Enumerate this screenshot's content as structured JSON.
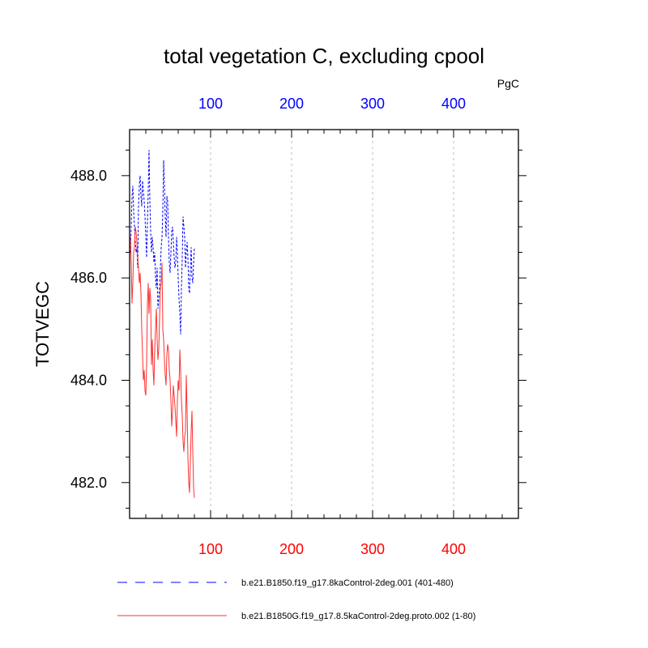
{
  "chart_data": {
    "type": "line",
    "title": "total vegetation C, excluding cpool",
    "units": "PgC",
    "ylabel": "TOTVEGC",
    "ylim": [
      481.3,
      488.9
    ],
    "yticks": [
      482.0,
      484.0,
      486.0,
      488.0
    ],
    "ytick_labels": [
      "482.0",
      "484.0",
      "486.0",
      "488.0"
    ],
    "xlim": [
      0,
      480
    ],
    "xticks": [
      100,
      200,
      300,
      400
    ],
    "xtick_labels_bottom": [
      "100",
      "200",
      "300",
      "400"
    ],
    "xtick_labels_top": [
      "100",
      "200",
      "300",
      "400"
    ],
    "grid": "vertical dashed at major x ticks",
    "legend_position": "bottom",
    "colors": {
      "top_axis": "#0000ff",
      "bottom_axis": "#ff0000",
      "series_blue": "#0000ff",
      "series_red": "#ff3030"
    },
    "series": [
      {
        "name": "b.e21.B1850.f19_g17.8kaControl-2deg.001 (401-480)",
        "color": "#0000ff",
        "style": "dashed",
        "x": [
          1,
          2,
          3,
          4,
          5,
          6,
          7,
          8,
          9,
          10,
          11,
          12,
          13,
          14,
          15,
          16,
          17,
          18,
          19,
          20,
          21,
          22,
          23,
          24,
          25,
          26,
          27,
          28,
          29,
          30,
          31,
          32,
          33,
          34,
          35,
          36,
          37,
          38,
          39,
          40,
          41,
          42,
          43,
          44,
          45,
          46,
          47,
          48,
          49,
          50,
          51,
          52,
          53,
          54,
          55,
          56,
          57,
          58,
          59,
          60,
          61,
          62,
          63,
          64,
          65,
          66,
          67,
          68,
          69,
          70,
          71,
          72,
          73,
          74,
          75,
          76,
          77,
          78,
          79,
          80
        ],
        "values": [
          486.5,
          487.0,
          487.6,
          487.8,
          487.3,
          487.0,
          486.7,
          486.5,
          486.6,
          486.2,
          487.4,
          487.8,
          488.0,
          487.6,
          487.4,
          487.9,
          487.7,
          487.5,
          487.2,
          486.8,
          486.4,
          487.1,
          487.7,
          488.5,
          487.5,
          486.9,
          486.5,
          486.8,
          486.6,
          486.3,
          486.5,
          486.0,
          485.8,
          486.2,
          485.4,
          485.6,
          485.8,
          486.2,
          486.6,
          486.8,
          487.3,
          488.3,
          487.8,
          487.2,
          486.8,
          487.6,
          487.5,
          486.8,
          486.3,
          486.1,
          486.5,
          486.9,
          487.0,
          486.7,
          486.4,
          486.2,
          486.3,
          486.8,
          486.5,
          486.0,
          485.6,
          485.3,
          484.9,
          485.8,
          486.4,
          487.2,
          487.0,
          486.8,
          486.2,
          486.5,
          486.7,
          486.4,
          485.8,
          485.7,
          486.2,
          486.6,
          486.0,
          485.9,
          486.3,
          486.6
        ]
      },
      {
        "name": "b.e21.B1850G.f19_g17.8.5kaControl-2deg.proto.002 (1-80)",
        "color": "#ff3030",
        "style": "solid",
        "x": [
          1,
          2,
          3,
          4,
          5,
          6,
          7,
          8,
          9,
          10,
          11,
          12,
          13,
          14,
          15,
          16,
          17,
          18,
          19,
          20,
          21,
          22,
          23,
          24,
          25,
          26,
          27,
          28,
          29,
          30,
          31,
          32,
          33,
          34,
          35,
          36,
          37,
          38,
          39,
          40,
          41,
          42,
          43,
          44,
          45,
          46,
          47,
          48,
          49,
          50,
          51,
          52,
          53,
          54,
          55,
          56,
          57,
          58,
          59,
          60,
          61,
          62,
          63,
          64,
          65,
          66,
          67,
          68,
          69,
          70,
          71,
          72,
          73,
          74,
          75,
          76,
          77,
          78,
          79,
          80
        ],
        "values": [
          486.8,
          486.3,
          485.5,
          485.9,
          486.5,
          486.6,
          487.0,
          486.9,
          486.7,
          486.4,
          486.2,
          485.9,
          486.1,
          485.7,
          485.0,
          484.5,
          484.0,
          484.2,
          483.8,
          483.7,
          484.3,
          485.5,
          485.9,
          485.3,
          485.8,
          485.6,
          484.3,
          484.8,
          484.2,
          483.9,
          484.6,
          485.0,
          485.4,
          484.8,
          484.4,
          484.6,
          485.2,
          485.8,
          485.9,
          486.3,
          485.0,
          484.8,
          484.4,
          484.1,
          483.9,
          484.5,
          484.7,
          484.6,
          484.2,
          484.0,
          483.6,
          483.1,
          483.4,
          483.9,
          483.7,
          483.5,
          483.2,
          482.9,
          483.6,
          484.0,
          483.8,
          484.6,
          484.2,
          483.6,
          483.3,
          482.8,
          482.6,
          482.9,
          483.0,
          484.1,
          483.4,
          482.5,
          482.0,
          481.8,
          482.4,
          483.0,
          483.4,
          482.6,
          481.9,
          481.7
        ]
      }
    ]
  }
}
